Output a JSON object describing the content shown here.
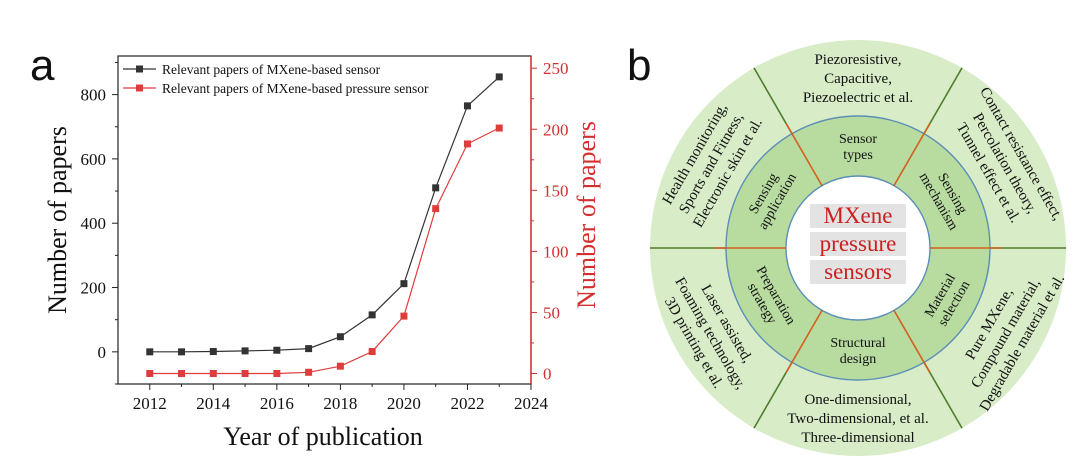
{
  "panel_a": {
    "label": "a"
  },
  "panel_b": {
    "label": "b",
    "center_lines": [
      "MXene",
      "pressure",
      "sensors"
    ],
    "middle_ring": [
      {
        "lines": [
          "Sensor",
          "types"
        ]
      },
      {
        "lines": [
          "Sensing",
          "mechanism"
        ]
      },
      {
        "lines": [
          "Material",
          "selection"
        ]
      },
      {
        "lines": [
          "Structural",
          "design"
        ]
      },
      {
        "lines": [
          "Preparation",
          "strategy"
        ]
      },
      {
        "lines": [
          "Sensing",
          "application"
        ]
      }
    ],
    "outer_ring": [
      {
        "lines": [
          "Piezoresistive,",
          "Capacitive,",
          "Piezoelectric et al."
        ]
      },
      {
        "lines": [
          "Contact resistance effect,",
          "Percolation theory,",
          "Tunnel effect et al."
        ]
      },
      {
        "lines": [
          "Pure MXene,",
          "Compound material,",
          "Degradable material et al."
        ]
      },
      {
        "lines": [
          "One-dimensional,",
          "Two-dimensional,  et al.",
          "Three-dimensional"
        ]
      },
      {
        "lines": [
          "Laser assisted,",
          "Foaming technology,",
          "3D printing et al."
        ]
      },
      {
        "lines": [
          "Health monitoring,",
          "Sports and Fitness,",
          "Electronic skin et al."
        ]
      }
    ],
    "colors": {
      "outer": "#d8ecc8",
      "middle": "#b8dba0",
      "ring_line": "#5b8fb5",
      "divider": "#4e7d2c",
      "sector_divider": "#d2601e",
      "center_text": "#cc1f1f"
    }
  },
  "chart_data": {
    "type": "line",
    "xlabel": "Year of publication",
    "ylabel": "Number of papers",
    "y2label": "Number of papers",
    "xlim": [
      2011,
      2024
    ],
    "ylim": [
      -100,
      920
    ],
    "y2lim": [
      -8.6,
      260
    ],
    "xticks": [
      2012,
      2014,
      2016,
      2018,
      2020,
      2022,
      2024
    ],
    "yticks": [
      0,
      200,
      400,
      600,
      800
    ],
    "y2ticks": [
      0,
      50,
      100,
      150,
      200,
      250
    ],
    "grid": false,
    "legend_position": "top-left",
    "x": [
      2012,
      2013,
      2014,
      2015,
      2016,
      2017,
      2018,
      2019,
      2020,
      2021,
      2022,
      2023
    ],
    "series": [
      {
        "name": "Relevant papers of MXene-based sensor",
        "axis": "left",
        "color": "#333333",
        "marker": "square",
        "values": [
          0,
          0,
          1,
          3,
          5,
          10,
          47,
          115,
          212,
          510,
          765,
          855
        ]
      },
      {
        "name": "Relevant papers of MXene-based pressure sensor",
        "axis": "right",
        "color": "#e03c3c",
        "marker": "square",
        "values": [
          0,
          0,
          0,
          0,
          0,
          1,
          6,
          18,
          47,
          135,
          188,
          201
        ]
      }
    ]
  }
}
